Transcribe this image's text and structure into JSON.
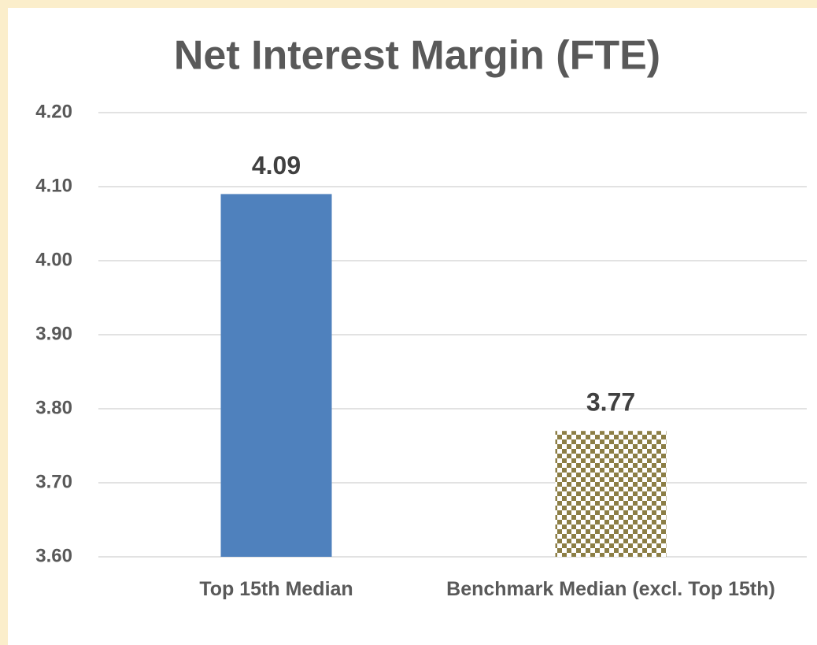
{
  "chart_data": {
    "type": "bar",
    "title": "Net Interest Margin (FTE)",
    "categories": [
      "Top 15th Median",
      "Benchmark Median (excl. Top 15th)"
    ],
    "values": [
      4.09,
      3.77
    ],
    "colors": [
      "#4f81bd",
      "#8c7e45"
    ],
    "patterns": [
      "solid",
      "checker"
    ],
    "ylim": [
      3.6,
      4.2
    ],
    "yticks": [
      {
        "value": 3.6,
        "label": "3.60"
      },
      {
        "value": 3.7,
        "label": "3.70"
      },
      {
        "value": 3.8,
        "label": "3.80"
      },
      {
        "value": 3.9,
        "label": "3.90"
      },
      {
        "value": 4.0,
        "label": "4.00"
      },
      {
        "value": 4.1,
        "label": "4.10"
      },
      {
        "value": 4.2,
        "label": "4.20"
      }
    ],
    "grid": true
  }
}
